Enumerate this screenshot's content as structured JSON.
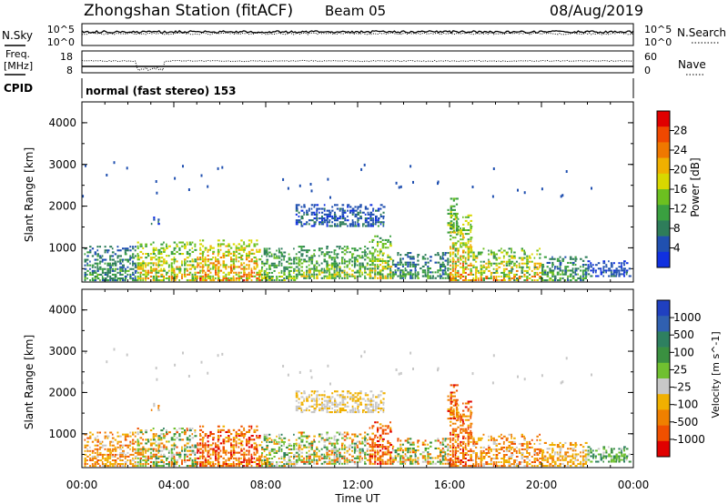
{
  "header": {
    "title": "Zhongshan Station (fitACF)",
    "beam": "Beam 05",
    "date": "08/Aug/2019"
  },
  "top_panels": {
    "nsky_label": "N.Sky",
    "nsearch_label": "N.Search",
    "noise_ticks_left": [
      "10^5",
      "10^0"
    ],
    "noise_ticks_right": [
      "10^5",
      "10^0"
    ],
    "freq_label": "Freq.",
    "freq_unit": "[MHz]",
    "freq_ticks": [
      "18",
      "8"
    ],
    "nave_label": "Nave",
    "nave_ticks": [
      "60",
      "0"
    ],
    "cpid_label": "CPID",
    "cpid_text": "normal (fast stereo) 153"
  },
  "colors": {
    "power_scale": [
      "#1030e0",
      "#2050b0",
      "#2e7d5a",
      "#3aa040",
      "#6cc020",
      "#d8d800",
      "#f0b000",
      "#f07800",
      "#f04800",
      "#e00000"
    ],
    "velocity_scale": [
      "#2040c0",
      "#3060b0",
      "#2e8060",
      "#3a9040",
      "#70c030",
      "#c8c8c8",
      "#f0b000",
      "#f08000",
      "#f05000",
      "#e00000"
    ]
  },
  "chart_data": [
    {
      "type": "heatmap",
      "name": "power",
      "ylabel": "Slant Range [km]",
      "ylim": [
        180,
        4500
      ],
      "yticks": [
        "1000",
        "2000",
        "3000",
        "4000"
      ],
      "xlim": [
        0,
        24
      ],
      "colorbar_label": "Power [dB]",
      "colorbar_ticks": [
        "4",
        "8",
        "12",
        "16",
        "20",
        "24",
        "28"
      ],
      "crange": [
        0,
        30
      ],
      "regions": [
        {
          "t0": 0.1,
          "t1": 2.4,
          "r0": 200,
          "r1": 1050,
          "v0": 4,
          "v1": 14
        },
        {
          "t0": 2.4,
          "t1": 5.0,
          "r0": 200,
          "r1": 1150,
          "v0": 10,
          "v1": 24
        },
        {
          "t0": 5.0,
          "t1": 7.8,
          "r0": 200,
          "r1": 1200,
          "v0": 12,
          "v1": 28
        },
        {
          "t0": 7.8,
          "t1": 9.3,
          "r0": 200,
          "r1": 1000,
          "v0": 6,
          "v1": 18
        },
        {
          "t0": 9.3,
          "t1": 12.5,
          "r0": 250,
          "r1": 1050,
          "v0": 6,
          "v1": 20
        },
        {
          "t0": 12.5,
          "t1": 13.5,
          "r0": 250,
          "r1": 1300,
          "v0": 8,
          "v1": 22
        },
        {
          "t0": 13.5,
          "t1": 16.0,
          "r0": 250,
          "r1": 900,
          "v0": 4,
          "v1": 14
        },
        {
          "t0": 16.0,
          "t1": 17.0,
          "r0": 200,
          "r1": 1800,
          "v0": 10,
          "v1": 28
        },
        {
          "t0": 17.0,
          "t1": 20.0,
          "r0": 200,
          "r1": 1000,
          "v0": 8,
          "v1": 26
        },
        {
          "t0": 20.0,
          "t1": 22.0,
          "r0": 200,
          "r1": 800,
          "v0": 4,
          "v1": 16
        },
        {
          "t0": 22.0,
          "t1": 23.9,
          "r0": 300,
          "r1": 700,
          "v0": 2,
          "v1": 8
        },
        {
          "t0": 9.3,
          "t1": 13.2,
          "r0": 1500,
          "r1": 2050,
          "v0": 2,
          "v1": 10
        },
        {
          "t0": 3.0,
          "t1": 3.4,
          "r0": 1550,
          "r1": 1750,
          "v0": 2,
          "v1": 8
        },
        {
          "t0": 15.9,
          "t1": 16.4,
          "r0": 1300,
          "r1": 2200,
          "v0": 8,
          "v1": 20
        }
      ]
    },
    {
      "type": "heatmap",
      "name": "velocity",
      "ylabel": "Slant Range [km]",
      "ylim": [
        180,
        4500
      ],
      "yticks": [
        "1000",
        "2000",
        "3000",
        "4000"
      ],
      "xlabel": "Time UT",
      "xlim": [
        0,
        24
      ],
      "xticks": [
        "00:00",
        "04:00",
        "08:00",
        "12:00",
        "16:00",
        "20:00",
        "00:00"
      ],
      "colorbar_label": "Velocity [m s^-1]",
      "colorbar_ticks": [
        "1000",
        "500",
        "100",
        "25",
        "-25",
        "-100",
        "-500",
        "-1000"
      ],
      "regions": [
        {
          "t0": 0.1,
          "t1": 2.4,
          "r0": 200,
          "r1": 1050,
          "v0": 5,
          "v1": 8
        },
        {
          "t0": 2.4,
          "t1": 5.0,
          "r0": 200,
          "r1": 1150,
          "v0": 2,
          "v1": 8
        },
        {
          "t0": 5.0,
          "t1": 7.8,
          "r0": 200,
          "r1": 1200,
          "v0": 6,
          "v1": 9
        },
        {
          "t0": 7.8,
          "t1": 9.3,
          "r0": 200,
          "r1": 1000,
          "v0": 2,
          "v1": 7
        },
        {
          "t0": 9.3,
          "t1": 12.5,
          "r0": 250,
          "r1": 1050,
          "v0": 2,
          "v1": 8
        },
        {
          "t0": 12.5,
          "t1": 13.5,
          "r0": 250,
          "r1": 1300,
          "v0": 6,
          "v1": 9
        },
        {
          "t0": 13.5,
          "t1": 16.0,
          "r0": 250,
          "r1": 900,
          "v0": 2,
          "v1": 8
        },
        {
          "t0": 16.0,
          "t1": 17.0,
          "r0": 200,
          "r1": 1800,
          "v0": 6,
          "v1": 9
        },
        {
          "t0": 17.0,
          "t1": 20.0,
          "r0": 200,
          "r1": 1000,
          "v0": 5,
          "v1": 8
        },
        {
          "t0": 20.0,
          "t1": 22.0,
          "r0": 200,
          "r1": 800,
          "v0": 5,
          "v1": 7
        },
        {
          "t0": 22.0,
          "t1": 23.9,
          "r0": 300,
          "r1": 700,
          "v0": 2,
          "v1": 5
        },
        {
          "t0": 9.3,
          "t1": 13.2,
          "r0": 1500,
          "r1": 2050,
          "v0": 5,
          "v1": 6
        },
        {
          "t0": 3.0,
          "t1": 3.4,
          "r0": 1550,
          "r1": 1750,
          "v0": 5,
          "v1": 7
        },
        {
          "t0": 15.9,
          "t1": 16.4,
          "r0": 1300,
          "r1": 2200,
          "v0": 6,
          "v1": 9
        }
      ]
    }
  ]
}
